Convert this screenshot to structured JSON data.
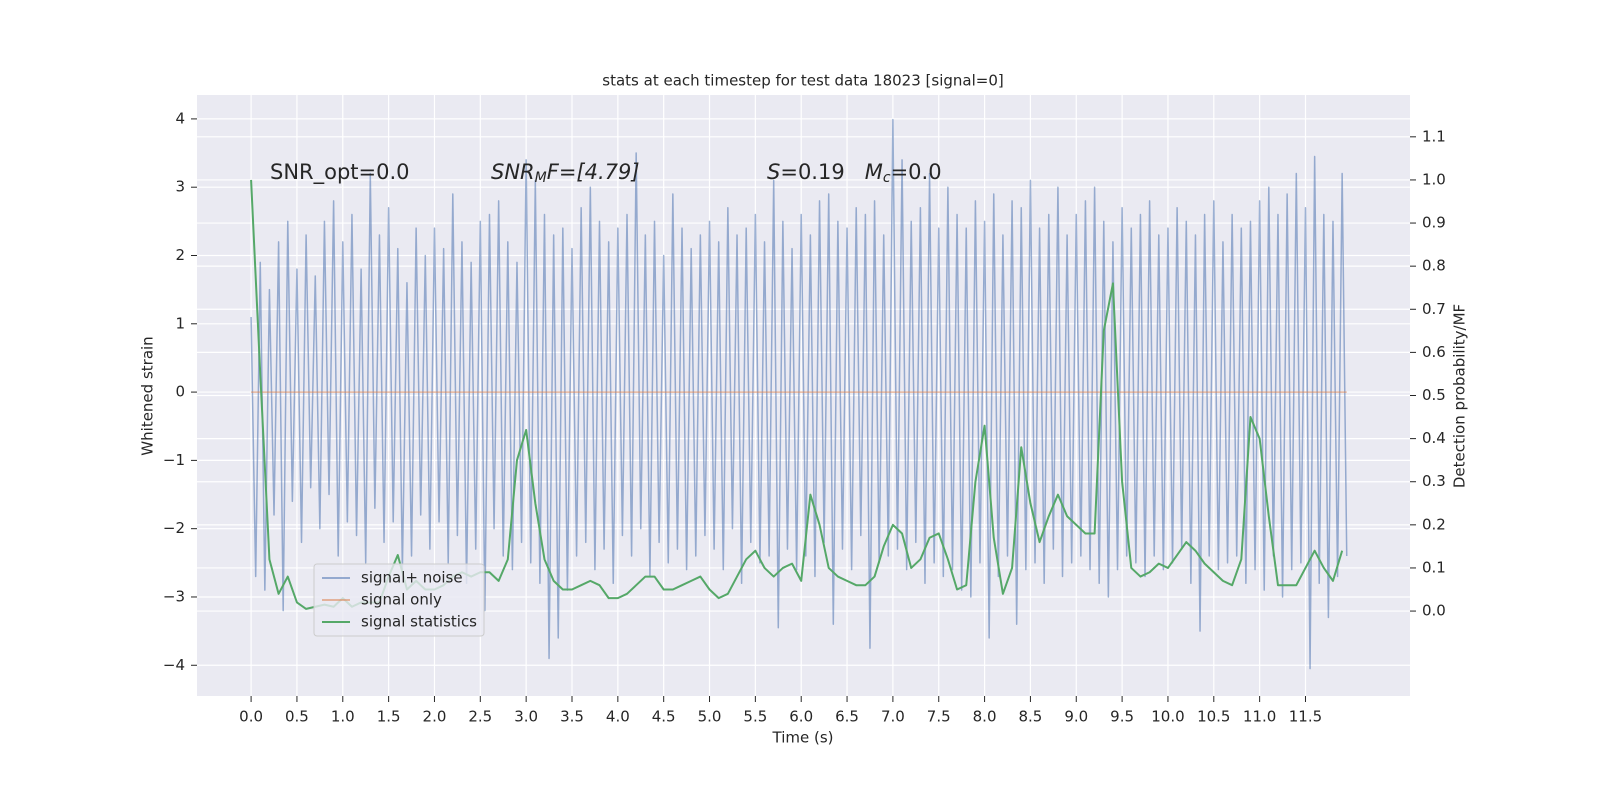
{
  "chart_data": {
    "type": "line",
    "title": "stats at each timestep for test data 18023 [signal=0]",
    "xlabel": "Time (s)",
    "ylabel": "Whitened strain",
    "y2label": "Detection probability/MF",
    "annotations": [
      {
        "parts": [
          "SNR_opt=0.0"
        ]
      },
      {
        "parts": [
          "SNR",
          "M",
          "F=[4.79]"
        ]
      },
      {
        "parts": [
          "S",
          "=0.19   ",
          "M",
          "c",
          "=0.0"
        ]
      }
    ],
    "xlim": [
      -0.59,
      12.64
    ],
    "ylim": [
      -4.45,
      4.35
    ],
    "y2lim": [
      -0.197,
      1.197
    ],
    "xticks": [
      {
        "value": 0,
        "label": "0.0"
      },
      0.5,
      {
        "value": 1,
        "label": "1.0"
      },
      1.5,
      {
        "value": 2,
        "label": "2.0"
      },
      2.5,
      {
        "value": 3,
        "label": "3.0"
      },
      3.5,
      {
        "value": 4,
        "label": "4.0"
      },
      4.5,
      {
        "value": 5,
        "label": "5.0"
      },
      5.5,
      {
        "value": 6,
        "label": "6.0"
      },
      6.5,
      {
        "value": 7,
        "label": "7.0"
      },
      7.5,
      {
        "value": 8,
        "label": "8.0"
      },
      8.5,
      {
        "value": 9,
        "label": "9.0"
      },
      9.5,
      {
        "value": 10,
        "label": "10.0"
      },
      10.5,
      {
        "value": 11,
        "label": "11.0"
      },
      11.5
    ],
    "yticks": [
      {
        "value": -4,
        "label": "−4"
      },
      {
        "value": -3,
        "label": "−3"
      },
      {
        "value": -2,
        "label": "−2"
      },
      {
        "value": -1,
        "label": "−1"
      },
      0,
      1,
      2,
      3,
      4
    ],
    "y2ticks": [
      {
        "value": 0,
        "label": "0.0"
      },
      0.1,
      0.2,
      0.3,
      0.4,
      0.5,
      0.6,
      0.7,
      0.8,
      0.9,
      {
        "value": 1,
        "label": "1.0"
      },
      1.1
    ],
    "grid": true,
    "legend": "lower left",
    "series": [
      {
        "name": "signal+ noise",
        "color": "#4c72b0",
        "axis": "y",
        "x": [
          0,
          0.05,
          0.1,
          0.15,
          0.2,
          0.25,
          0.3,
          0.35,
          0.4,
          0.45,
          0.5,
          0.55,
          0.6,
          0.65,
          0.7,
          0.75,
          0.8,
          0.85,
          0.9,
          0.95,
          1,
          1.05,
          1.1,
          1.15,
          1.2,
          1.25,
          1.3,
          1.35,
          1.4,
          1.45,
          1.5,
          1.55,
          1.6,
          1.65,
          1.7,
          1.75,
          1.8,
          1.85,
          1.9,
          1.95,
          2,
          2.05,
          2.1,
          2.15,
          2.2,
          2.25,
          2.3,
          2.35,
          2.4,
          2.45,
          2.5,
          2.55,
          2.6,
          2.65,
          2.7,
          2.75,
          2.8,
          2.85,
          2.9,
          2.95,
          3,
          3.05,
          3.1,
          3.15,
          3.2,
          3.25,
          3.3,
          3.35,
          3.4,
          3.45,
          3.5,
          3.55,
          3.6,
          3.65,
          3.7,
          3.75,
          3.8,
          3.85,
          3.9,
          3.95,
          4,
          4.05,
          4.1,
          4.15,
          4.2,
          4.25,
          4.3,
          4.35,
          4.4,
          4.45,
          4.5,
          4.55,
          4.6,
          4.65,
          4.7,
          4.75,
          4.8,
          4.85,
          4.9,
          4.95,
          5,
          5.05,
          5.1,
          5.15,
          5.2,
          5.25,
          5.3,
          5.35,
          5.4,
          5.45,
          5.5,
          5.55,
          5.6,
          5.65,
          5.7,
          5.75,
          5.8,
          5.85,
          5.9,
          5.95,
          6,
          6.05,
          6.1,
          6.15,
          6.2,
          6.25,
          6.3,
          6.35,
          6.4,
          6.45,
          6.5,
          6.55,
          6.6,
          6.65,
          6.7,
          6.75,
          6.8,
          6.85,
          6.9,
          6.95,
          7,
          7.05,
          7.1,
          7.15,
          7.2,
          7.25,
          7.3,
          7.35,
          7.4,
          7.45,
          7.5,
          7.55,
          7.6,
          7.65,
          7.7,
          7.75,
          7.8,
          7.85,
          7.9,
          7.95,
          8,
          8.05,
          8.1,
          8.15,
          8.2,
          8.25,
          8.3,
          8.35,
          8.4,
          8.45,
          8.5,
          8.55,
          8.6,
          8.65,
          8.7,
          8.75,
          8.8,
          8.85,
          8.9,
          8.95,
          9,
          9.05,
          9.1,
          9.15,
          9.2,
          9.25,
          9.3,
          9.35,
          9.4,
          9.45,
          9.5,
          9.55,
          9.6,
          9.65,
          9.7,
          9.75,
          9.8,
          9.85,
          9.9,
          9.95,
          10,
          10.05,
          10.1,
          10.15,
          10.2,
          10.25,
          10.3,
          10.35,
          10.4,
          10.45,
          10.5,
          10.55,
          10.6,
          10.65,
          10.7,
          10.75,
          10.8,
          10.85,
          10.9,
          10.95,
          11,
          11.05,
          11.1,
          11.15,
          11.2,
          11.25,
          11.3,
          11.35,
          11.4,
          11.45,
          11.5,
          11.55,
          11.6,
          11.65,
          11.7,
          11.75,
          11.8,
          11.85,
          11.9,
          11.95
        ],
        "values": [
          1.1,
          -2.7,
          1.9,
          -2.9,
          1.5,
          -1.8,
          2.2,
          -3.2,
          2.5,
          -1.6,
          1.8,
          -2.2,
          2.3,
          -1.4,
          1.7,
          -2.0,
          2.5,
          -1.5,
          2.8,
          -2.4,
          2.2,
          -1.9,
          2.6,
          -2.1,
          1.8,
          -2.5,
          3.2,
          -1.7,
          2.3,
          -2.2,
          2.7,
          -1.9,
          2.1,
          -2.6,
          1.6,
          -2.4,
          2.4,
          -1.8,
          2.0,
          -2.3,
          2.4,
          -1.9,
          2.1,
          -2.5,
          2.9,
          -2.1,
          2.2,
          -2.8,
          1.9,
          -2.3,
          2.5,
          -3.2,
          2.6,
          -2.0,
          2.8,
          -2.4,
          2.2,
          -2.6,
          1.9,
          -2.2,
          3.4,
          -2.5,
          3.1,
          -2.8,
          2.6,
          -3.9,
          2.3,
          -3.6,
          2.4,
          -2.9,
          2.1,
          -2.4,
          2.7,
          -2.2,
          3.0,
          -2.6,
          2.5,
          -2.3,
          2.2,
          -2.8,
          2.4,
          -2.1,
          2.6,
          -2.4,
          3.5,
          -2.0,
          2.3,
          -2.7,
          2.5,
          -2.2,
          2.0,
          -2.5,
          2.9,
          -2.3,
          2.4,
          -2.6,
          2.1,
          -2.4,
          2.3,
          -2.1,
          2.5,
          -2.3,
          2.2,
          -2.6,
          2.7,
          -2.0,
          2.3,
          -2.8,
          2.4,
          -2.2,
          2.6,
          -2.5,
          2.2,
          -2.4,
          3.1,
          -3.45,
          2.5,
          -2.3,
          2.1,
          -2.6,
          2.6,
          -2.4,
          2.3,
          -2.7,
          2.8,
          -2.2,
          2.9,
          -3.4,
          2.5,
          -2.3,
          2.4,
          -2.6,
          2.7,
          -2.1,
          2.6,
          -3.75,
          2.8,
          -2.5,
          2.3,
          -2.4,
          3.99,
          -2.3,
          3.4,
          -2.6,
          2.5,
          -2.2,
          2.7,
          -2.8,
          3.2,
          -2.5,
          2.4,
          -2.7,
          3.0,
          -2.6,
          2.6,
          -2.9,
          2.4,
          -3.0,
          2.8,
          -2.5,
          2.5,
          -3.6,
          2.9,
          -2.7,
          2.3,
          -2.4,
          2.8,
          -3.4,
          2.7,
          -2.6,
          3.1,
          -2.5,
          2.4,
          -2.8,
          2.6,
          -2.3,
          3.0,
          -2.7,
          2.3,
          -2.5,
          2.6,
          -2.4,
          2.8,
          -2.6,
          3.0,
          -2.8,
          2.5,
          -3.0,
          2.2,
          -2.6,
          2.7,
          -2.4,
          2.4,
          -2.5,
          2.6,
          -2.7,
          2.8,
          -2.4,
          2.3,
          -2.6,
          2.4,
          -2.5,
          2.7,
          -2.3,
          2.5,
          -2.8,
          2.3,
          -3.5,
          2.6,
          -2.4,
          2.8,
          -2.6,
          2.2,
          -2.5,
          2.6,
          -2.4,
          2.4,
          -2.8,
          2.5,
          -2.6,
          2.8,
          -2.9,
          3.0,
          -2.4,
          2.6,
          -3.0,
          2.9,
          -2.6,
          3.2,
          -2.5,
          2.7,
          -4.05,
          3.45,
          -2.8,
          2.6,
          -3.3,
          2.5,
          -2.7,
          3.2,
          -2.4
        ]
      },
      {
        "name": "signal only",
        "color": "#dd8452",
        "axis": "y",
        "x": [
          0,
          11.95
        ],
        "values": [
          0,
          0
        ]
      },
      {
        "name": "signal statistics",
        "color": "#55a868",
        "axis": "y2",
        "x": [
          0,
          0.1,
          0.2,
          0.3,
          0.4,
          0.5,
          0.6,
          0.7,
          0.8,
          0.9,
          1,
          1.1,
          1.2,
          1.3,
          1.4,
          1.5,
          1.6,
          1.7,
          1.8,
          1.9,
          2,
          2.1,
          2.2,
          2.3,
          2.4,
          2.5,
          2.6,
          2.7,
          2.8,
          2.9,
          3,
          3.1,
          3.2,
          3.3,
          3.4,
          3.5,
          3.6,
          3.7,
          3.8,
          3.9,
          4,
          4.1,
          4.2,
          4.3,
          4.4,
          4.5,
          4.6,
          4.7,
          4.8,
          4.9,
          5,
          5.1,
          5.2,
          5.3,
          5.4,
          5.5,
          5.6,
          5.7,
          5.8,
          5.9,
          6,
          6.1,
          6.2,
          6.3,
          6.4,
          6.5,
          6.6,
          6.7,
          6.8,
          6.9,
          7,
          7.1,
          7.2,
          7.3,
          7.4,
          7.5,
          7.6,
          7.7,
          7.8,
          7.9,
          8,
          8.1,
          8.2,
          8.3,
          8.4,
          8.5,
          8.6,
          8.7,
          8.8,
          8.9,
          9,
          9.1,
          9.2,
          9.3,
          9.4,
          9.5,
          9.6,
          9.7,
          9.8,
          9.9,
          10,
          10.1,
          10.2,
          10.3,
          10.4,
          10.5,
          10.6,
          10.7,
          10.8,
          10.9,
          11,
          11.1,
          11.2,
          11.3,
          11.4,
          11.5,
          11.6,
          11.7,
          11.8,
          11.9
        ],
        "values": [
          1.0,
          0.55,
          0.12,
          0.04,
          0.08,
          0.02,
          0.005,
          0.01,
          0.015,
          0.01,
          0.03,
          0.01,
          0.02,
          0.02,
          0.02,
          0.08,
          0.13,
          0.05,
          0.07,
          0.05,
          0.05,
          0.06,
          0.08,
          0.09,
          0.08,
          0.09,
          0.09,
          0.07,
          0.12,
          0.35,
          0.42,
          0.25,
          0.12,
          0.07,
          0.05,
          0.05,
          0.06,
          0.07,
          0.06,
          0.03,
          0.03,
          0.04,
          0.06,
          0.08,
          0.08,
          0.05,
          0.05,
          0.06,
          0.07,
          0.08,
          0.05,
          0.03,
          0.04,
          0.08,
          0.12,
          0.14,
          0.1,
          0.08,
          0.1,
          0.11,
          0.07,
          0.27,
          0.2,
          0.1,
          0.08,
          0.07,
          0.06,
          0.06,
          0.08,
          0.15,
          0.2,
          0.18,
          0.1,
          0.12,
          0.17,
          0.18,
          0.12,
          0.05,
          0.06,
          0.3,
          0.43,
          0.17,
          0.04,
          0.1,
          0.38,
          0.25,
          0.16,
          0.22,
          0.27,
          0.22,
          0.2,
          0.18,
          0.18,
          0.65,
          0.76,
          0.3,
          0.1,
          0.08,
          0.09,
          0.11,
          0.1,
          0.13,
          0.16,
          0.14,
          0.11,
          0.09,
          0.07,
          0.06,
          0.12,
          0.45,
          0.4,
          0.22,
          0.06,
          0.06,
          0.06,
          0.1,
          0.14,
          0.1,
          0.07,
          0.14
        ]
      }
    ]
  }
}
